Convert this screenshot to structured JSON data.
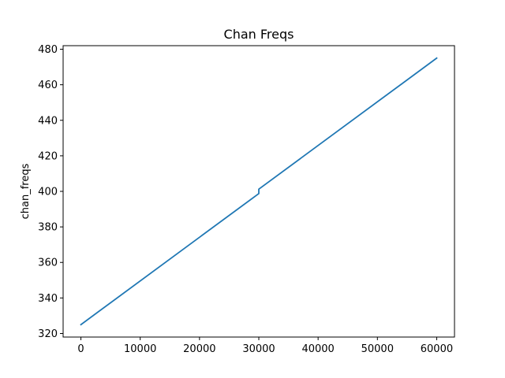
{
  "chart_data": {
    "type": "line",
    "title": "Chan Freqs",
    "xlabel": "",
    "ylabel": "chan_freqs",
    "xlim": [
      -3000,
      63000
    ],
    "ylim": [
      318,
      482
    ],
    "x_ticks": [
      0,
      10000,
      20000,
      30000,
      40000,
      50000,
      60000
    ],
    "x_tick_labels": [
      "0",
      "10000",
      "20000",
      "30000",
      "40000",
      "50000",
      "60000"
    ],
    "y_ticks": [
      320,
      340,
      360,
      380,
      400,
      420,
      440,
      460,
      480
    ],
    "y_tick_labels": [
      "320",
      "340",
      "360",
      "380",
      "400",
      "420",
      "440",
      "460",
      "480"
    ],
    "grid": false,
    "legend": "none",
    "series": [
      {
        "color": "#1f77b4",
        "points": [
          [
            0,
            325.0
          ],
          [
            29999,
            398.75
          ],
          [
            30000,
            398.75
          ],
          [
            30000,
            401.25
          ],
          [
            60000,
            475.0
          ]
        ]
      }
    ]
  }
}
